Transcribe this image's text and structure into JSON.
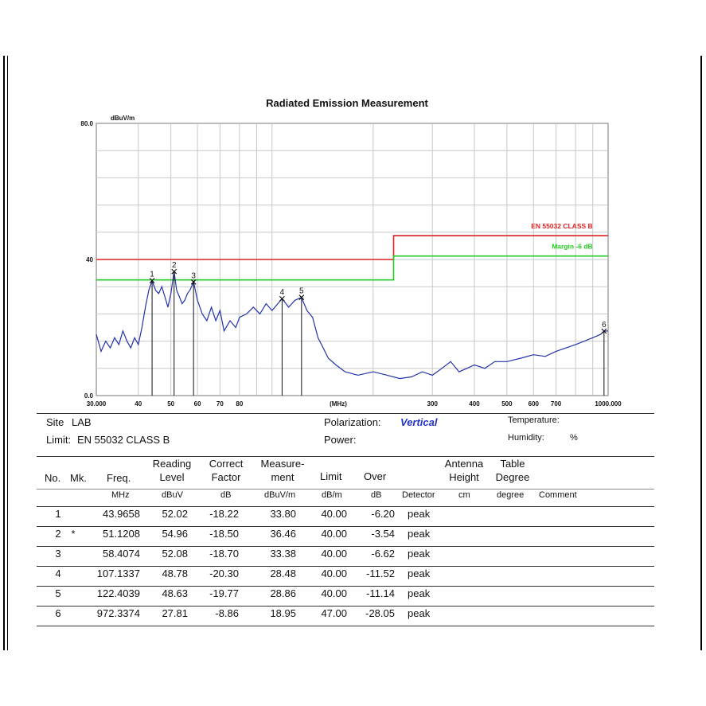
{
  "chart_data": {
    "type": "line",
    "title": "Radiated Emission Measurement",
    "y_unit": "dBuV/m",
    "x_unit": "(MHz)",
    "x_scale": "log",
    "xlim": [
      30,
      1000
    ],
    "ylim": [
      0,
      80
    ],
    "y_ticks": [
      "80.0",
      "40",
      "0.0"
    ],
    "y_tick_values": [
      80,
      40,
      0
    ],
    "x_tick_labels": [
      "30.000",
      "40",
      "50",
      "60",
      "70",
      "80",
      "300",
      "400",
      "500",
      "600",
      "700",
      "1000.000"
    ],
    "x_tick_values": [
      30,
      40,
      50,
      60,
      70,
      80,
      300,
      400,
      500,
      600,
      700,
      1000
    ],
    "grid": true,
    "limit_lines": [
      {
        "name": "EN 55032 CLASS B",
        "color": "#dd2222",
        "segments": [
          [
            30,
            230,
            40
          ],
          [
            230,
            1000,
            47
          ]
        ]
      },
      {
        "name": "Margin -6 dB",
        "color": "#22cc22",
        "segments": [
          [
            30,
            230,
            34
          ],
          [
            230,
            1000,
            41
          ]
        ]
      }
    ],
    "series": [
      {
        "color": "#2233aa",
        "x": [
          30,
          31,
          32,
          33,
          34,
          35,
          36,
          37,
          38,
          39,
          40,
          41,
          42,
          43,
          43.9658,
          45,
          46,
          47,
          48,
          49,
          50,
          51.1208,
          52,
          53,
          54,
          55,
          56,
          57,
          58.4074,
          60,
          62,
          64,
          66,
          68,
          70,
          72,
          75,
          78,
          80,
          84,
          88,
          92,
          96,
          100,
          104,
          107.1337,
          112,
          117,
          122.4039,
          127,
          132,
          137,
          142,
          147,
          155,
          165,
          180,
          200,
          220,
          240,
          260,
          280,
          300,
          320,
          340,
          360,
          380,
          400,
          430,
          460,
          500,
          550,
          600,
          650,
          700,
          750,
          800,
          850,
          900,
          950,
          972.3374,
          1000
        ],
        "y": [
          18,
          13,
          16,
          14,
          17,
          15,
          19,
          16,
          14,
          17,
          15,
          20,
          26,
          31,
          33.8,
          31,
          30,
          32,
          29,
          26,
          30,
          36.46,
          31,
          29,
          27,
          28,
          30,
          31,
          33.38,
          28,
          24,
          22,
          26,
          22,
          25,
          19,
          22,
          20,
          23,
          24,
          26,
          24,
          27,
          25,
          27,
          28.48,
          26,
          28,
          28.86,
          25,
          23,
          17,
          14,
          11,
          9,
          7,
          6,
          7,
          6,
          5,
          5.5,
          7,
          6,
          8,
          10,
          7,
          8,
          9,
          8,
          10,
          10,
          11,
          12,
          11.5,
          13,
          14,
          15,
          16,
          17,
          18,
          18.95,
          19
        ]
      }
    ],
    "markers": [
      {
        "label": "1",
        "x": 43.9658,
        "y": 33.8
      },
      {
        "label": "2",
        "x": 51.1208,
        "y": 36.46
      },
      {
        "label": "3",
        "x": 58.4074,
        "y": 33.38
      },
      {
        "label": "4",
        "x": 107.1337,
        "y": 28.48
      },
      {
        "label": "5",
        "x": 122.4039,
        "y": 28.86
      },
      {
        "label": "6",
        "x": 972.3374,
        "y": 18.95
      }
    ]
  },
  "info": {
    "site_label": "Site",
    "site_value": "LAB",
    "limit_label": "Limit:",
    "limit_value": "EN 55032 CLASS B",
    "polarization_label": "Polarization:",
    "polarization_value": "Vertical",
    "power_label": "Power:",
    "temperature_label": "Temperature:",
    "humidity_label": "Humidity:",
    "humidity_unit": "%"
  },
  "table": {
    "headers": [
      [
        "No.",
        "Mk."
      ],
      [
        "Freq."
      ],
      [
        "Reading",
        "Level"
      ],
      [
        "Correct",
        "Factor"
      ],
      [
        "Measure-",
        "ment"
      ],
      [
        "Limit"
      ],
      [
        "Over"
      ],
      [
        "Detector"
      ],
      [
        "Antenna",
        "Height"
      ],
      [
        "Table",
        "Degree"
      ],
      [
        "Comment"
      ]
    ],
    "units": [
      "MHz",
      "dBuV",
      "dB",
      "dBuV/m",
      "dB/m",
      "dB",
      "Detector",
      "cm",
      "degree",
      "Comment"
    ],
    "rows": [
      {
        "no": "1",
        "mk": "",
        "freq": "43.9658",
        "reading": "52.02",
        "factor": "-18.22",
        "measure": "33.80",
        "limit": "40.00",
        "over": "-6.20",
        "detector": "peak"
      },
      {
        "no": "2",
        "mk": "*",
        "freq": "51.1208",
        "reading": "54.96",
        "factor": "-18.50",
        "measure": "36.46",
        "limit": "40.00",
        "over": "-3.54",
        "detector": "peak"
      },
      {
        "no": "3",
        "mk": "",
        "freq": "58.4074",
        "reading": "52.08",
        "factor": "-18.70",
        "measure": "33.38",
        "limit": "40.00",
        "over": "-6.62",
        "detector": "peak"
      },
      {
        "no": "4",
        "mk": "",
        "freq": "107.1337",
        "reading": "48.78",
        "factor": "-20.30",
        "measure": "28.48",
        "limit": "40.00",
        "over": "-11.52",
        "detector": "peak"
      },
      {
        "no": "5",
        "mk": "",
        "freq": "122.4039",
        "reading": "48.63",
        "factor": "-19.77",
        "measure": "28.86",
        "limit": "40.00",
        "over": "-11.14",
        "detector": "peak"
      },
      {
        "no": "6",
        "mk": "",
        "freq": "972.3374",
        "reading": "27.81",
        "factor": "-8.86",
        "measure": "18.95",
        "limit": "47.00",
        "over": "-28.05",
        "detector": "peak"
      }
    ]
  }
}
